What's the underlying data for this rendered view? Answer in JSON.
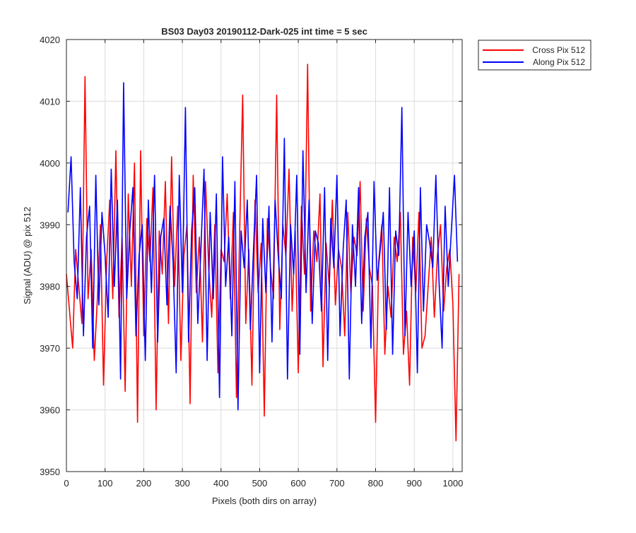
{
  "chart_data": {
    "type": "line",
    "title": "BS03 Day03 20190112-Dark-025 int time = 5 sec",
    "xlabel": "Pixels (both dirs on array)",
    "ylabel": "Signal (ADU) @ pix 512",
    "xlim": [
      0,
      1024
    ],
    "ylim": [
      3950,
      4020
    ],
    "xticks": [
      0,
      100,
      200,
      300,
      400,
      500,
      600,
      700,
      800,
      900,
      1000
    ],
    "yticks": [
      3950,
      3960,
      3970,
      3980,
      3990,
      4000,
      4010,
      4020
    ],
    "grid": true,
    "legend_location": "outside top-right",
    "series_resolution_note_excluded": true,
    "series": [
      {
        "name": "Cross Pix 512",
        "color": "#ff0000",
        "x_start": 0,
        "x_step": 8,
        "values": [
          3982,
          3976,
          3970,
          3986,
          3980,
          3974,
          4014,
          3978,
          3986,
          3968,
          3978,
          3990,
          3964,
          3984,
          3994,
          3978,
          4002,
          3975,
          3988,
          3963,
          3995,
          3980,
          4000,
          3958,
          4002,
          3972,
          3991,
          3984,
          3996,
          3960,
          3989,
          3982,
          3997,
          3974,
          4001,
          3980,
          3993,
          3968,
          3985,
          3990,
          3961,
          3998,
          3979,
          3988,
          3971,
          3997,
          3983,
          3975,
          3990,
          3966,
          3986,
          3984,
          3995,
          3978,
          3992,
          3962,
          3988,
          4011,
          3974,
          3986,
          3964,
          3994,
          3979,
          3987,
          3959,
          3991,
          3983,
          3978,
          4011,
          3973,
          3990,
          3985,
          3999,
          3976,
          3989,
          3966,
          3993,
          3982,
          4016,
          3976,
          3989,
          3984,
          3995,
          3967,
          3987,
          3980,
          3994,
          3977,
          3986,
          3983,
          3972,
          3992,
          3979,
          3988,
          3985,
          3997,
          3976,
          3991,
          3983,
          3980,
          3958,
          3984,
          3990,
          3969,
          3980,
          3975,
          3988,
          3984,
          3992,
          3969,
          3976,
          3964,
          3988,
          3979,
          3992,
          3970,
          3972,
          3980,
          3988,
          3975,
          3985,
          3990,
          3976,
          3983,
          3986,
          3977,
          3955,
          3982
        ]
      },
      {
        "name": "Along Pix 512",
        "color": "#0000ff",
        "x_start": 4,
        "x_step": 8,
        "values": [
          3992,
          4001,
          3984,
          3978,
          3996,
          3972,
          3988,
          3993,
          3970,
          3998,
          3977,
          3992,
          3985,
          3975,
          3999,
          3980,
          3994,
          3965,
          4013,
          3978,
          3989,
          3996,
          3972,
          3985,
          3990,
          3968,
          3994,
          3979,
          3998,
          3971,
          3988,
          3991,
          3977,
          3993,
          3984,
          3966,
          3998,
          3979,
          4009,
          3971,
          3989,
          3996,
          3974,
          3986,
          3999,
          3968,
          3992,
          3978,
          3995,
          3962,
          4001,
          3980,
          3988,
          3972,
          3997,
          3960,
          3989,
          3983,
          3994,
          3973,
          3986,
          3998,
          3966,
          3991,
          3979,
          3993,
          3971,
          3994,
          3985,
          3978,
          4004,
          3965,
          3990,
          3982,
          3998,
          3969,
          4002,
          3979,
          3994,
          3974,
          3989,
          3987,
          3976,
          3996,
          3968,
          3991,
          3983,
          3998,
          3972,
          3986,
          3994,
          3965,
          3990,
          3980,
          3996,
          3974,
          3988,
          3992,
          3970,
          3997,
          3981,
          3986,
          3992,
          3973,
          3996,
          3969,
          3989,
          3985,
          4009,
          3972,
          3992,
          3980,
          3989,
          3966,
          3996,
          3976,
          3990,
          3987,
          3983,
          3998,
          3981,
          3970,
          3993,
          3980,
          3989,
          3998,
          3984
        ]
      }
    ]
  }
}
